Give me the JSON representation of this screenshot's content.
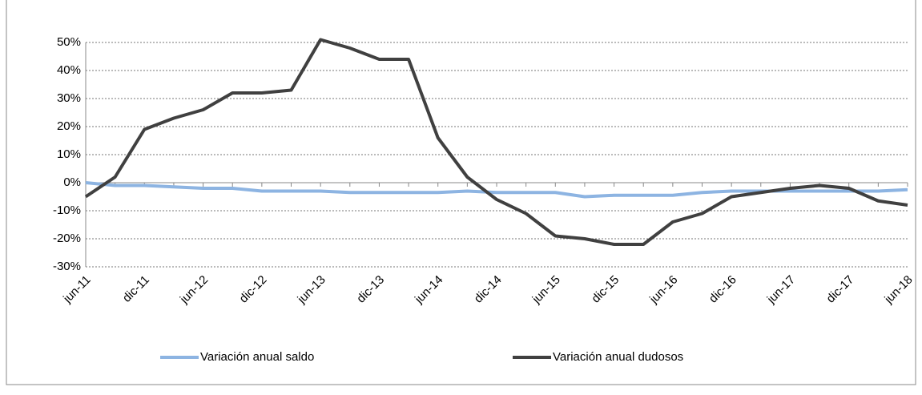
{
  "chart_data": {
    "type": "line",
    "categories": [
      "jun-11",
      null,
      "dic-11",
      null,
      "jun-12",
      null,
      "dic-12",
      null,
      "jun-13",
      null,
      "dic-13",
      null,
      "jun-14",
      null,
      "dic-14",
      null,
      "jun-15",
      null,
      "dic-15",
      null,
      "jun-16",
      null,
      "dic-16",
      null,
      "jun-17",
      null,
      "dic-17",
      null,
      "jun-18"
    ],
    "series": [
      {
        "name": "Variación anual saldo",
        "color": "#8db4e2",
        "values": [
          0,
          -1,
          -1,
          -1.5,
          -2,
          -2,
          -3,
          -3,
          -3,
          -3.5,
          -3.5,
          -3.5,
          -3.5,
          -3,
          -3.5,
          -3.5,
          -3.5,
          -5,
          -4.5,
          -4.5,
          -4.5,
          -3.5,
          -3,
          -3,
          -3,
          -3,
          -3,
          -3,
          -2.5
        ]
      },
      {
        "name": "Variación anual dudosos",
        "color": "#404040",
        "values": [
          -5,
          2,
          19,
          23,
          26,
          32,
          32,
          33,
          51,
          48,
          44,
          44,
          16,
          2,
          -6,
          -11,
          -19,
          -20,
          -22,
          -22,
          -14,
          -11,
          -5,
          -3.5,
          -2,
          -1,
          -2,
          -6.5,
          -8
        ]
      }
    ],
    "ylim": [
      -30,
      50
    ],
    "yticks": [
      {
        "value": -30,
        "label": "-30%"
      },
      {
        "value": -20,
        "label": "-20%"
      },
      {
        "value": -10,
        "label": "-10%"
      },
      {
        "value": 0,
        "label": "0%"
      },
      {
        "value": 10,
        "label": "10%"
      },
      {
        "value": 20,
        "label": "20%"
      },
      {
        "value": 30,
        "label": "30%"
      },
      {
        "value": 40,
        "label": "40%"
      },
      {
        "value": 50,
        "label": "50%"
      }
    ],
    "grid": true,
    "legend": "bottom"
  }
}
